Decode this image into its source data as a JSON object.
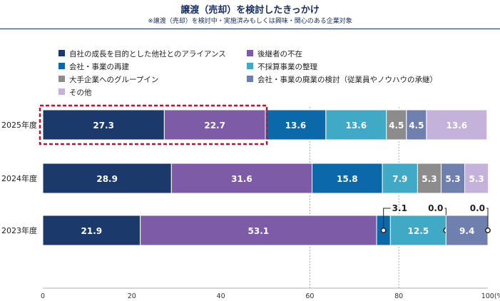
{
  "chart_data": {
    "type": "bar",
    "orientation": "horizontal-stacked",
    "title": "譲渡（売却）を検討したきっかけ",
    "subtitle": "※譲渡（売却）を検討中・実施済みもしくは興味・関心のある企業対象",
    "categories": [
      "2025年度",
      "2024年度",
      "2023年度"
    ],
    "series": [
      {
        "name": "自社の成長を目的とした他社とのアライアンス",
        "color": "#1b3a6b",
        "values": [
          27.3,
          28.9,
          21.9
        ]
      },
      {
        "name": "後継者の不在",
        "color": "#7d5ba6",
        "values": [
          22.7,
          31.6,
          53.1
        ]
      },
      {
        "name": "会社・事業の再建",
        "color": "#0c69a9",
        "values": [
          13.6,
          15.8,
          3.1
        ]
      },
      {
        "name": "不採算事業の整理",
        "color": "#40a9c6",
        "values": [
          13.6,
          7.9,
          12.5
        ]
      },
      {
        "name": "大手企業へのグループイン",
        "color": "#8c8c8c",
        "values": [
          4.5,
          5.3,
          0.0
        ]
      },
      {
        "name": "会社・事業の廃業の検討（従業員やノウハウの承継）",
        "color": "#6f7fae",
        "values": [
          4.5,
          5.3,
          9.4
        ]
      },
      {
        "name": "その他",
        "color": "#c4b2da",
        "values": [
          13.6,
          5.3,
          0.0
        ]
      }
    ],
    "xlim": [
      0,
      100
    ],
    "xticks": [
      "0",
      "20",
      "40",
      "60",
      "80",
      "100(%)"
    ],
    "xtick_values": [
      0,
      20,
      40,
      60,
      80,
      100
    ],
    "highlight": "2025年度 自社の成長を目的とした他社とのアライアンス + 後継者の不在"
  }
}
